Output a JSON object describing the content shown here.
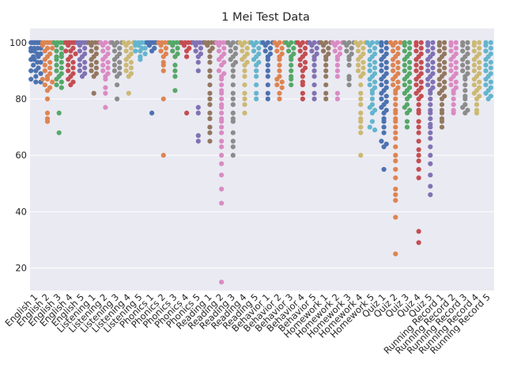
{
  "chart_data": {
    "type": "scatter",
    "style": "swarm",
    "title": "1 Mei Test Data",
    "xlabel": "",
    "ylabel": "",
    "ylim": [
      12,
      105
    ],
    "yticks": [
      20,
      40,
      60,
      80,
      100
    ],
    "grid": true,
    "background": "#EAEAF2",
    "palette": [
      "#4C72B0",
      "#DD8452",
      "#55A868",
      "#C44E52",
      "#8172B3",
      "#937860",
      "#DA8BC3",
      "#8C8C8C",
      "#CCB974",
      "#64B5CD"
    ],
    "categories": [
      "English 1",
      "English 2",
      "English 3",
      "English 4",
      "English 5",
      "Listening 1",
      "Listening 2",
      "Listening 3",
      "Listening 4",
      "Listening 5",
      "Phonics 1",
      "Phonics 2",
      "Phonics 3",
      "Phonics 4",
      "Phonics 5",
      "Reading 1",
      "Reading 2",
      "Reading 3",
      "Reading 4",
      "Reading 5",
      "Behavior 1",
      "Behavior 2",
      "Behavior 3",
      "Behavior 4",
      "Behavior 5",
      "Homework 1",
      "Homework 2",
      "Homework 3",
      "Homework 4",
      "Homework 5",
      "Quiz 1",
      "Quiz 2",
      "Quiz 3",
      "Quiz 4",
      "Quiz 5",
      "Running Record 1",
      "Running Record 2",
      "Running Record 3",
      "Running Record 4",
      "Running Record 5"
    ],
    "series": [
      {
        "values": [
          100,
          100,
          100,
          100,
          100,
          100,
          100,
          100,
          100,
          98,
          98,
          98,
          98,
          97,
          97,
          96,
          96,
          95,
          95,
          94,
          94,
          93,
          93,
          92,
          91,
          90,
          90,
          89,
          88,
          87,
          86,
          86
        ]
      },
      {
        "values": [
          100,
          100,
          100,
          100,
          100,
          99,
          98,
          98,
          97,
          96,
          95,
          94,
          93,
          92,
          91,
          90,
          89,
          88,
          87,
          87,
          86,
          85,
          84,
          83,
          80,
          75,
          73,
          72
        ]
      },
      {
        "values": [
          100,
          100,
          100,
          100,
          99,
          98,
          97,
          96,
          95,
          95,
          94,
          93,
          92,
          91,
          90,
          89,
          88,
          87,
          86,
          85,
          84,
          75,
          68
        ]
      },
      {
        "values": [
          100,
          100,
          100,
          100,
          100,
          100,
          99,
          98,
          97,
          97,
          96,
          95,
          94,
          93,
          92,
          91,
          90,
          89,
          88,
          87,
          86,
          85
        ]
      },
      {
        "values": [
          100,
          100,
          100,
          100,
          100,
          99,
          98,
          97,
          96,
          95,
          94,
          93,
          92,
          91,
          90,
          89,
          88
        ]
      },
      {
        "values": [
          100,
          100,
          100,
          100,
          99,
          98,
          97,
          96,
          95,
          94,
          93,
          92,
          91,
          90,
          89,
          88,
          82
        ]
      },
      {
        "values": [
          100,
          100,
          100,
          99,
          98,
          97,
          96,
          95,
          94,
          93,
          92,
          91,
          90,
          89,
          88,
          87,
          84,
          82,
          77
        ]
      },
      {
        "values": [
          100,
          100,
          100,
          99,
          98,
          97,
          96,
          95,
          94,
          93,
          92,
          91,
          90,
          89,
          88,
          85,
          80
        ]
      },
      {
        "values": [
          100,
          100,
          100,
          99,
          98,
          97,
          96,
          95,
          94,
          93,
          92,
          91,
          90,
          89,
          88,
          82
        ]
      },
      {
        "values": [
          100,
          100,
          100,
          100,
          99,
          99,
          98,
          98,
          97,
          97,
          96,
          95,
          94
        ]
      },
      {
        "values": [
          100,
          100,
          100,
          100,
          100,
          100,
          99,
          98,
          97,
          75
        ]
      },
      {
        "values": [
          100,
          100,
          100,
          100,
          99,
          98,
          97,
          96,
          95,
          93,
          92,
          90,
          80,
          60
        ]
      },
      {
        "values": [
          100,
          100,
          100,
          100,
          99,
          98,
          97,
          96,
          95,
          92,
          90,
          88,
          83
        ]
      },
      {
        "values": [
          100,
          100,
          100,
          100,
          99,
          98,
          97,
          95,
          75
        ]
      },
      {
        "values": [
          100,
          100,
          100,
          100,
          99,
          98,
          97,
          96,
          95,
          93,
          90,
          77,
          75,
          67,
          65
        ]
      },
      {
        "values": [
          100,
          100,
          100,
          100,
          99,
          98,
          97,
          95,
          93,
          90,
          88,
          85,
          82,
          80,
          78,
          75,
          73,
          70,
          68,
          65
        ]
      },
      {
        "values": [
          100,
          100,
          100,
          100,
          99,
          98,
          97,
          96,
          95,
          94,
          93,
          92,
          90,
          89,
          88,
          87,
          85,
          83,
          82,
          80,
          78,
          77,
          75,
          73,
          72,
          70,
          68,
          65,
          63,
          60,
          57,
          53,
          48,
          43,
          15
        ]
      },
      {
        "values": [
          100,
          100,
          100,
          99,
          98,
          97,
          96,
          95,
          94,
          93,
          92,
          90,
          88,
          85,
          82,
          80,
          78,
          75,
          73,
          72,
          68,
          65,
          63,
          60
        ]
      },
      {
        "values": [
          100,
          100,
          100,
          99,
          98,
          97,
          96,
          95,
          94,
          93,
          92,
          90,
          88,
          85,
          82,
          80,
          78,
          75
        ]
      },
      {
        "values": [
          100,
          100,
          100,
          99,
          98,
          97,
          96,
          95,
          94,
          93,
          92,
          90,
          88,
          85,
          82,
          80
        ]
      },
      {
        "values": [
          100,
          100,
          100,
          99,
          98,
          97,
          96,
          95,
          94,
          92,
          90,
          88,
          85,
          82,
          80
        ]
      },
      {
        "values": [
          100,
          100,
          100,
          99,
          98,
          97,
          96,
          95,
          94,
          92,
          90,
          88,
          87,
          86,
          85,
          84,
          82,
          80
        ]
      },
      {
        "values": [
          100,
          100,
          100,
          99,
          98,
          97,
          96,
          95,
          94,
          92,
          90,
          88,
          87,
          85
        ]
      },
      {
        "values": [
          100,
          100,
          100,
          99,
          98,
          97,
          96,
          95,
          94,
          93,
          92,
          91,
          90,
          88,
          86,
          85,
          82,
          80
        ]
      },
      {
        "values": [
          100,
          100,
          100,
          99,
          98,
          97,
          96,
          95,
          94,
          92,
          90,
          88,
          85,
          82,
          80
        ]
      },
      {
        "values": [
          100,
          100,
          100,
          99,
          98,
          97,
          96,
          95,
          94,
          92,
          90,
          88,
          85,
          82,
          80
        ]
      },
      {
        "values": [
          100,
          100,
          100,
          99,
          98,
          97,
          96,
          95,
          94,
          92,
          90,
          88,
          82,
          80
        ]
      },
      {
        "values": [
          100,
          100,
          100,
          99,
          98,
          97,
          96,
          95,
          94,
          92,
          88,
          87,
          85
        ]
      },
      {
        "values": [
          100,
          100,
          100,
          99,
          98,
          97,
          96,
          95,
          94,
          93,
          92,
          91,
          90,
          89,
          88,
          85,
          82,
          80,
          78,
          75,
          73,
          72,
          70,
          68,
          60
        ]
      },
      {
        "values": [
          100,
          100,
          100,
          99,
          98,
          97,
          96,
          95,
          94,
          93,
          92,
          91,
          90,
          89,
          88,
          87,
          86,
          85,
          84,
          83,
          82,
          80,
          78,
          77,
          76,
          75,
          72,
          70,
          69
        ]
      },
      {
        "values": [
          100,
          100,
          99,
          98,
          97,
          96,
          95,
          94,
          93,
          92,
          91,
          90,
          89,
          88,
          87,
          86,
          85,
          84,
          83,
          82,
          81,
          80,
          79,
          78,
          77,
          76,
          75,
          73,
          72,
          70,
          68,
          65,
          64,
          63,
          55
        ]
      },
      {
        "values": [
          100,
          100,
          100,
          99,
          98,
          97,
          96,
          95,
          94,
          93,
          92,
          91,
          90,
          89,
          88,
          87,
          86,
          85,
          84,
          83,
          82,
          80,
          78,
          76,
          75,
          73,
          72,
          70,
          68,
          66,
          63,
          60,
          58,
          55,
          52,
          48,
          46,
          44,
          38,
          25
        ]
      },
      {
        "values": [
          100,
          100,
          99,
          98,
          97,
          96,
          95,
          94,
          93,
          92,
          91,
          90,
          89,
          88,
          87,
          86,
          85,
          84,
          83,
          82,
          81,
          80,
          78,
          77,
          76,
          75,
          72,
          70
        ]
      },
      {
        "values": [
          100,
          100,
          99,
          98,
          97,
          96,
          95,
          94,
          93,
          92,
          91,
          90,
          89,
          88,
          87,
          86,
          85,
          84,
          83,
          82,
          81,
          80,
          78,
          76,
          75,
          72,
          70,
          68,
          65,
          62,
          60,
          58,
          55,
          52,
          33,
          29
        ]
      },
      {
        "values": [
          100,
          100,
          99,
          98,
          97,
          96,
          95,
          94,
          93,
          92,
          91,
          90,
          89,
          88,
          87,
          86,
          85,
          84,
          83,
          82,
          80,
          78,
          76,
          75,
          73,
          71,
          70,
          68,
          66,
          63,
          60,
          57,
          53,
          49,
          46
        ]
      },
      {
        "values": [
          100,
          100,
          99,
          98,
          97,
          96,
          95,
          94,
          93,
          92,
          91,
          90,
          89,
          88,
          87,
          86,
          85,
          84,
          83,
          82,
          81,
          80,
          78,
          76,
          75,
          73,
          72,
          70
        ]
      },
      {
        "values": [
          100,
          100,
          99,
          98,
          97,
          96,
          95,
          94,
          93,
          92,
          91,
          90,
          89,
          88,
          87,
          86,
          85,
          84,
          83,
          82,
          80,
          78,
          76,
          75
        ]
      },
      {
        "values": [
          100,
          100,
          99,
          98,
          97,
          96,
          95,
          94,
          93,
          92,
          91,
          90,
          89,
          88,
          87,
          85,
          83,
          81,
          80,
          78,
          77,
          76,
          75
        ]
      },
      {
        "values": [
          100,
          100,
          99,
          98,
          97,
          96,
          95,
          94,
          93,
          92,
          91,
          90,
          89,
          88,
          87,
          86,
          85,
          84,
          83,
          82,
          81,
          80,
          78,
          76,
          75
        ]
      },
      {
        "values": [
          100,
          100,
          99,
          98,
          97,
          96,
          95,
          94,
          93,
          92,
          91,
          90,
          89,
          88,
          87,
          86,
          85,
          84,
          83,
          82,
          81,
          80
        ]
      }
    ]
  }
}
